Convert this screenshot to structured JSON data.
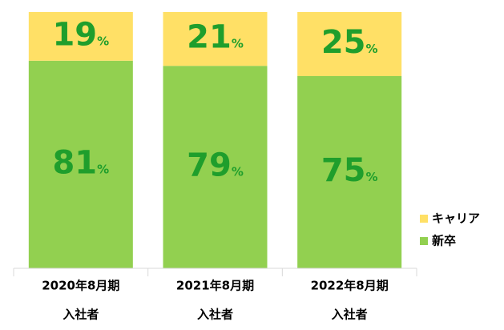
{
  "chart_data": {
    "type": "stacked_bar",
    "categories": [
      [
        "2020年8月期",
        "入社者"
      ],
      [
        "2021年8月期",
        "入社者"
      ],
      [
        "2022年8月期",
        "入社者"
      ]
    ],
    "series": [
      {
        "name": "新卒",
        "color": "#92d050",
        "values": [
          81,
          79,
          75
        ],
        "value_labels": [
          "81%",
          "79%",
          "75%"
        ]
      },
      {
        "name": "キャリア",
        "color": "#ffe066",
        "values": [
          19,
          21,
          25
        ],
        "value_labels": [
          "19%",
          "21%",
          "25%"
        ]
      }
    ],
    "ylim": [
      0,
      100
    ],
    "legend": "right"
  }
}
